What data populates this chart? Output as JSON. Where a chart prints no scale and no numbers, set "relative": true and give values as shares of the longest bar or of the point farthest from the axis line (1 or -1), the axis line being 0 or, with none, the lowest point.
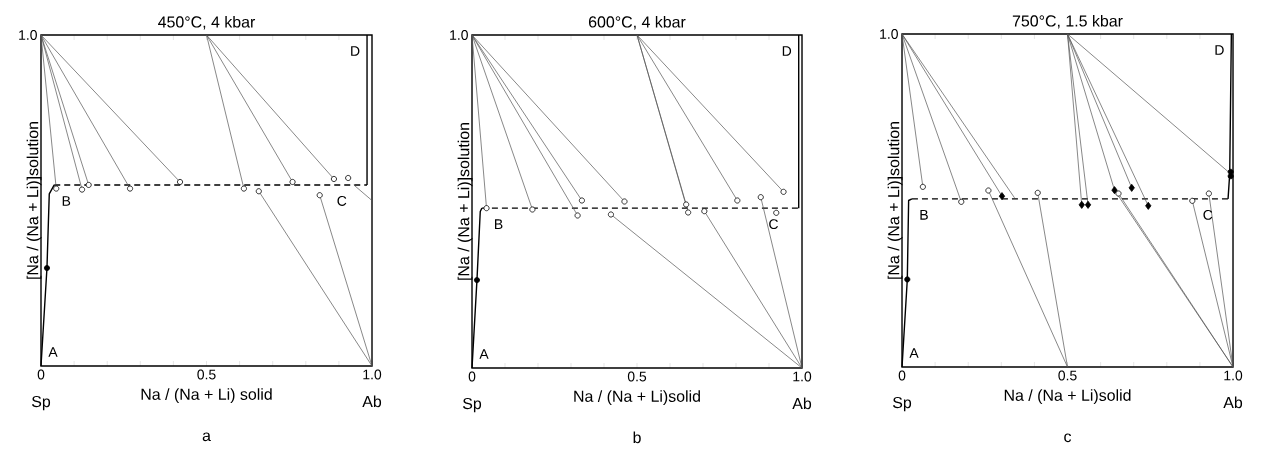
{
  "chart_data": [
    {
      "type": "line",
      "relative": true,
      "title": "450°C, 4 kbar",
      "xlabel": "Na / (Na + Li) solid",
      "ylabel": "[Na / (Na + Li)]solution",
      "xlim": [
        0,
        1
      ],
      "xticks": [
        0,
        {
          "value": 0.1,
          "label": null
        },
        {
          "value": 0.2,
          "label": null
        },
        {
          "value": 0.3,
          "label": null
        },
        {
          "value": 0.4,
          "label": null
        },
        0.5,
        {
          "value": 0.6,
          "label": null
        },
        {
          "value": 0.7,
          "label": null
        },
        {
          "value": 0.8,
          "label": null
        },
        {
          "value": 0.9,
          "label": null
        },
        {
          "value": 1,
          "label": "1.0"
        }
      ],
      "annotations": [
        "Sp",
        "Ab",
        "a",
        "1.0",
        {
          "text": "A",
          "x": 0,
          "y": 0
        },
        {
          "text": "B",
          "x": 0.04,
          "y": 0.547
        },
        {
          "text": "C",
          "x": 0.945,
          "y": 0.547
        },
        {
          "text": "D",
          "x": 0.985,
          "y": 1
        }
      ],
      "series": [
        {
          "color": "#000000",
          "x": [
            0,
            0.018,
            0.025,
            0.04
          ],
          "values": [
            0,
            0.296,
            0.52,
            0.547
          ]
        },
        {
          "color": "#000000",
          "line_style": "dashed",
          "x": [
            0.04,
            0.985
          ],
          "values": [
            0.547,
            0.547
          ]
        },
        {
          "color": "#000000",
          "x": [
            0.985,
            0.985
          ],
          "values": [
            0.547,
            1
          ]
        },
        {
          "color": "#555555",
          "x": [
            0.945,
            1
          ],
          "values": [
            0.547,
            0.5
          ]
        },
        {
          "color": "#555555",
          "x": [
            0,
            0.046
          ],
          "values": [
            1,
            0.536
          ]
        },
        {
          "color": "#555555",
          "x": [
            0,
            0.124
          ],
          "values": [
            1,
            0.533
          ]
        },
        {
          "color": "#555555",
          "x": [
            0,
            0.144
          ],
          "values": [
            1,
            0.547
          ]
        },
        {
          "color": "#555555",
          "x": [
            0,
            0.269
          ],
          "values": [
            1,
            0.536
          ]
        },
        {
          "color": "#555555",
          "x": [
            0,
            0.42
          ],
          "values": [
            1,
            0.556
          ]
        },
        {
          "color": "#555555",
          "x": [
            0.5,
            0.613
          ],
          "values": [
            1,
            0.536
          ]
        },
        {
          "color": "#555555",
          "x": [
            0.5,
            0.76
          ],
          "values": [
            1,
            0.556
          ]
        },
        {
          "color": "#555555",
          "x": [
            0.5,
            0.885
          ],
          "values": [
            1,
            0.565
          ]
        },
        {
          "color": "#555555",
          "x": [
            1,
            0.658
          ],
          "values": [
            0,
            0.528
          ]
        },
        {
          "color": "#555555",
          "x": [
            1,
            0.842
          ],
          "values": [
            0,
            0.516
          ]
        },
        {
          "type": "scatter",
          "marker": "circle",
          "color": "#ffffff",
          "x": [
            0.046,
            0.124,
            0.144,
            0.269,
            0.42,
            0.613,
            0.658,
            0.76,
            0.842,
            0.885,
            0.928
          ],
          "values": [
            0.536,
            0.533,
            0.547,
            0.536,
            0.556,
            0.536,
            0.528,
            0.556,
            0.516,
            0.565,
            0.568
          ]
        },
        {
          "type": "scatter",
          "marker": "circle",
          "color": "#000000",
          "x": [
            0.018
          ],
          "values": [
            0.296
          ]
        }
      ]
    },
    {
      "type": "line",
      "relative": true,
      "title": "600°C, 4 kbar",
      "xlabel": "Na / (Na + Li)solid",
      "ylabel": "[Na / (Na + Li)]solution",
      "xlim": [
        0,
        1
      ],
      "xticks": [
        0,
        {
          "value": 0.1,
          "label": null
        },
        {
          "value": 0.2,
          "label": null
        },
        {
          "value": 0.3,
          "label": null
        },
        {
          "value": 0.4,
          "label": null
        },
        0.5,
        {
          "value": 0.6,
          "label": null
        },
        {
          "value": 0.7,
          "label": null
        },
        {
          "value": 0.8,
          "label": null
        },
        {
          "value": 0.9,
          "label": null
        },
        {
          "value": 1,
          "label": "1.0"
        }
      ],
      "annotations": [
        "Sp",
        "Ab",
        "b",
        "1.0",
        {
          "text": "A",
          "x": 0,
          "y": 0
        },
        {
          "text": "B",
          "x": 0.044,
          "y": 0.48
        },
        {
          "text": "C",
          "x": 0.95,
          "y": 0.48
        },
        {
          "text": "D",
          "x": 0.99,
          "y": 1
        }
      ],
      "series": [
        {
          "color": "#000000",
          "x": [
            0,
            0.015,
            0.025,
            0.03
          ],
          "values": [
            0,
            0.264,
            0.47,
            0.48
          ]
        },
        {
          "color": "#000000",
          "line_style": "dashed",
          "x": [
            0.03,
            0.99
          ],
          "values": [
            0.48,
            0.48
          ]
        },
        {
          "color": "#000000",
          "x": [
            0.99,
            0.99
          ],
          "values": [
            0.48,
            1
          ]
        },
        {
          "color": "#555555",
          "x": [
            0,
            0.044
          ],
          "values": [
            1,
            0.48
          ]
        },
        {
          "color": "#555555",
          "x": [
            0,
            0.183
          ],
          "values": [
            1,
            0.476
          ]
        },
        {
          "color": "#555555",
          "x": [
            0,
            0.32
          ],
          "values": [
            1,
            0.458
          ]
        },
        {
          "color": "#555555",
          "x": [
            0,
            0.333
          ],
          "values": [
            1,
            0.503
          ]
        },
        {
          "color": "#555555",
          "x": [
            0,
            0.462
          ],
          "values": [
            1,
            0.5
          ]
        },
        {
          "color": "#555555",
          "x": [
            0.5,
            0.649
          ],
          "values": [
            1,
            0.491
          ]
        },
        {
          "color": "#555555",
          "x": [
            0.5,
            0.655
          ],
          "values": [
            1,
            0.467
          ]
        },
        {
          "color": "#555555",
          "x": [
            0.5,
            0.804
          ],
          "values": [
            1,
            0.503
          ]
        },
        {
          "color": "#555555",
          "x": [
            0.5,
            0.944
          ],
          "values": [
            1,
            0.529
          ]
        },
        {
          "color": "#555555",
          "x": [
            1,
            0.421
          ],
          "values": [
            0,
            0.461
          ]
        },
        {
          "color": "#555555",
          "x": [
            1,
            0.704
          ],
          "values": [
            0,
            0.471
          ]
        },
        {
          "color": "#555555",
          "x": [
            1,
            0.875
          ],
          "values": [
            0,
            0.513
          ]
        },
        {
          "type": "scatter",
          "marker": "circle",
          "color": "#ffffff",
          "x": [
            0.044,
            0.183,
            0.32,
            0.333,
            0.421,
            0.462,
            0.649,
            0.655,
            0.704,
            0.804,
            0.875,
            0.922,
            0.944
          ],
          "values": [
            0.48,
            0.476,
            0.458,
            0.503,
            0.461,
            0.5,
            0.491,
            0.467,
            0.471,
            0.503,
            0.513,
            0.466,
            0.529
          ]
        },
        {
          "type": "scatter",
          "marker": "circle",
          "color": "#000000",
          "x": [
            0.015
          ],
          "values": [
            0.264
          ]
        }
      ]
    },
    {
      "type": "line",
      "relative": true,
      "title": "750°C, 1.5 kbar",
      "xlabel": "Na / (Na + Li)solid",
      "ylabel": "[Na / (Na + Li)]solution",
      "xlim": [
        0,
        1
      ],
      "xticks": [
        0,
        {
          "value": 0.1,
          "label": null
        },
        {
          "value": 0.2,
          "label": null
        },
        {
          "value": 0.3,
          "label": null
        },
        {
          "value": 0.4,
          "label": null
        },
        0.5,
        {
          "value": 0.6,
          "label": null
        },
        {
          "value": 0.7,
          "label": null
        },
        {
          "value": 0.8,
          "label": null
        },
        {
          "value": 0.9,
          "label": null
        },
        {
          "value": 1,
          "label": "1.0"
        }
      ],
      "annotations": [
        "Sp",
        "Ab",
        "c",
        "1.0",
        {
          "text": "A",
          "x": 0,
          "y": 0
        },
        {
          "text": "B",
          "x": 0.03,
          "y": 0.505
        },
        {
          "text": "C",
          "x": 0.96,
          "y": 0.505
        },
        {
          "text": "D",
          "x": 0.995,
          "y": 1
        }
      ],
      "series": [
        {
          "color": "#000000",
          "x": [
            0,
            0.016,
            0.02,
            0.03
          ],
          "values": [
            0,
            0.263,
            0.5,
            0.505
          ]
        },
        {
          "color": "#000000",
          "line_style": "dashed",
          "x": [
            0.03,
            0.985
          ],
          "values": [
            0.505,
            0.505
          ]
        },
        {
          "color": "#000000",
          "x": [
            0.985,
            0.99,
            0.995
          ],
          "values": [
            0.505,
            0.58,
            1
          ]
        },
        {
          "color": "#555555",
          "x": [
            0,
            0.063
          ],
          "values": [
            1,
            0.541
          ]
        },
        {
          "color": "#555555",
          "x": [
            0,
            0.179
          ],
          "values": [
            1,
            0.496
          ]
        },
        {
          "color": "#555555",
          "x": [
            0,
            0.302
          ],
          "values": [
            1,
            0.513
          ]
        },
        {
          "color": "#555555",
          "x": [
            0,
            0.34
          ],
          "values": [
            1,
            0.508
          ]
        },
        {
          "color": "#555555",
          "x": [
            0.5,
            0.261
          ],
          "values": [
            0,
            0.53
          ]
        },
        {
          "color": "#555555",
          "x": [
            0.5,
            0.41
          ],
          "values": [
            0,
            0.523
          ]
        },
        {
          "color": "#555555",
          "x": [
            0.5,
            0.543
          ],
          "values": [
            1,
            0.487
          ]
        },
        {
          "color": "#555555",
          "x": [
            0.5,
            0.562
          ],
          "values": [
            1,
            0.487
          ]
        },
        {
          "color": "#555555",
          "x": [
            0.5,
            0.642
          ],
          "values": [
            1,
            0.531
          ]
        },
        {
          "color": "#555555",
          "x": [
            0.5,
            0.694
          ],
          "values": [
            1,
            0.538
          ]
        },
        {
          "color": "#555555",
          "x": [
            0.5,
            0.744
          ],
          "values": [
            1,
            0.484
          ]
        },
        {
          "color": "#555555",
          "x": [
            0.5,
            0.993
          ],
          "values": [
            1,
            0.58
          ]
        },
        {
          "color": "#555555",
          "x": [
            1,
            0.654
          ],
          "values": [
            0,
            0.521
          ]
        },
        {
          "color": "#555555",
          "x": [
            1,
            0.642
          ],
          "values": [
            0,
            0.531
          ]
        },
        {
          "color": "#555555",
          "x": [
            1,
            0.877
          ],
          "values": [
            0,
            0.499
          ]
        },
        {
          "color": "#555555",
          "x": [
            1,
            0.927
          ],
          "values": [
            0,
            0.521
          ]
        },
        {
          "type": "scatter",
          "marker": "circle",
          "color": "#ffffff",
          "x": [
            0.063,
            0.179,
            0.261,
            0.41,
            0.654,
            0.877,
            0.927
          ],
          "values": [
            0.541,
            0.496,
            0.53,
            0.523,
            0.521,
            0.499,
            0.521
          ]
        },
        {
          "type": "scatter",
          "marker": "diamond",
          "color": "#000000",
          "x": [
            0.302,
            0.543,
            0.562,
            0.642,
            0.694,
            0.744
          ],
          "values": [
            0.513,
            0.487,
            0.487,
            0.531,
            0.538,
            0.484
          ]
        },
        {
          "type": "scatter",
          "marker": "circle",
          "color": "#000000",
          "x": [
            0.016,
            0.993,
            0.993
          ],
          "values": [
            0.263,
            0.573,
            0.586
          ]
        }
      ]
    }
  ]
}
